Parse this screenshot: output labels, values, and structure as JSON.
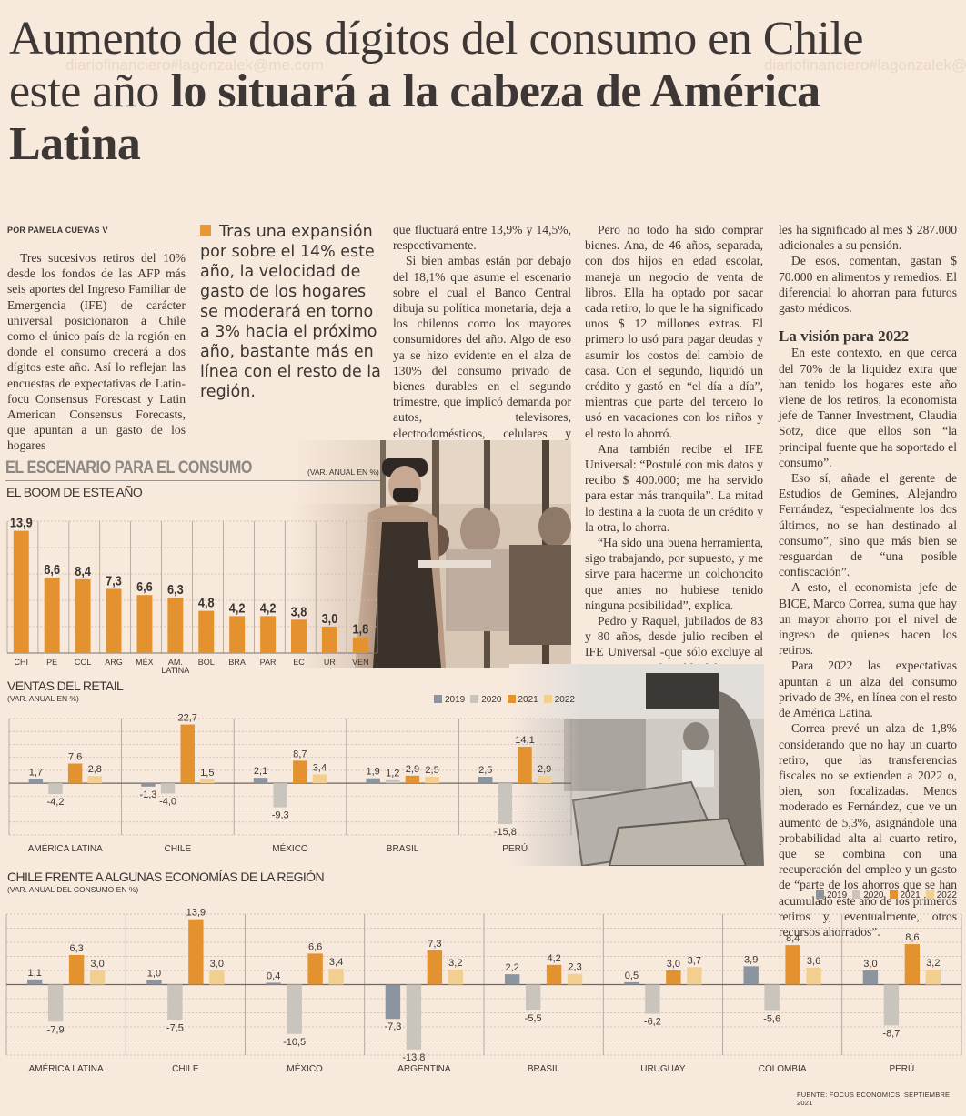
{
  "headline": {
    "light": "Aumento de dos dígitos del consumo en Chile este año ",
    "bold": "lo situará a la cabeza de América Latina"
  },
  "watermark": [
    "diariofinanciero#lagonzalek@me.com",
    "diariofinanciero#lagonzalek@me.com"
  ],
  "byline": "POR PAMELA CUEVAS V",
  "pull_quote": "Tras una expansión por sobre el 14% este año, la velocidad de gasto de los hogares se moderará en torno a 3% hacia el próximo año, bastante más en línea con el resto de la región.",
  "columns": {
    "col1": [
      "Tres sucesivos retiros del 10% desde los fondos de las AFP más seis aportes del Ingreso Familiar de Emergencia (IFE) de carácter universal posicionaron a Chile como el único país de la región en donde el consumo crecerá a dos dígitos este año. Así lo reflejan las encuestas de expectativas de Latin-focu Consensus Forescast y Latin American Consensus Forecasts, que apuntan a un gasto de los hogares"
    ],
    "col2": [
      "que fluctuará entre 13,9% y 14,5%, respectivamente.",
      "Si bien ambas están por debajo del 18,1% que asume el escenario sobre el cual el Banco Central dibuja su política monetaria, deja a los chilenos como los mayores consumidores del año. Algo de eso ya se hizo evidente en el alza de 130% del consumo privado de bienes durables en el segundo trimestre, que implicó demanda por autos, televisores, electrodomésticos, celulares y computadores"
    ],
    "col3": [
      "Pero no todo ha sido comprar bienes. Ana, de 46 años, separada, con dos hijos en edad escolar, maneja un negocio de venta de libros. Ella ha optado por sacar cada retiro, lo que le ha significado unos $ 12 millones extras. El primero lo usó para pagar deudas y asumir los costos del cambio de casa. Con el segundo, liquidó un crédito y gastó en “el día a día”, mientras que parte del tercero lo usó en vacaciones con los niños y el resto lo ahorró.",
      "Ana también recibe el IFE Universal: “Postulé con mis datos y recibo $ 400.000; me ha servido para estar más tranquila”. La mitad lo destina a la cuota de un crédito y la otra, lo ahorra.",
      "“Ha sido una buena herramienta, sigo trabajando, por supuesto, y me sirve para hacerme un colchoncito que antes no hubiese tenido ninguna posibilidad”, explica.",
      "Pedro y Raquel, jubilados de 83 y 80 años, desde julio reciben el IFE Universal -que sólo excluye al 10% menos vulnerable del Registro Social de Hogares (RSH)-, lo que"
    ],
    "col4a": [
      "les ha significado al mes $ 287.000 adicionales a su pensión.",
      "De esos, comentan, gastan $ 70.000 en alimentos y remedios. El diferencial lo ahorran para futuros gasto médicos."
    ],
    "col4_subhead": "La visión para 2022",
    "col4b": [
      "En este contexto, en que cerca del 70% de la liquidez extra que han tenido los hogares este año viene de los retiros, la economista jefe de Tanner Investment, Claudia Sotz, dice que ellos son “la principal fuente que ha soportado el consumo”.",
      "Eso sí, añade el gerente de Estudios de Gemines, Alejandro Fernández, “especialmente los dos últimos, no se han destinado al consumo”, sino que más bien se resguardan de “una posible confiscación”.",
      "A esto, el economista jefe de BICE, Marco Correa, suma que hay un mayor ahorro por el nivel de ingreso de quienes hacen los retiros.",
      "Para 2022 las expectativas apuntan a un alza del consumo privado de 3%, en línea con el resto de América Latina.",
      "Correa prevé un alza de 1,8% considerando que no hay un cuarto retiro, que las transferencias fiscales no se extienden a 2022 o, bien, son focalizadas. Menos moderado es Fernández, que ve un aumento de 5,3%, asignándole una probabilidad alta al cuarto retiro, que se combina con una recuperación del empleo y un gasto de “parte de los ahorros que se han acumulado este año de los primeros retiros y, eventualmente, otros recursos ahorrados”."
    ]
  },
  "infographic": {
    "title": "EL ESCENARIO PARA EL CONSUMO",
    "unit_note": "(VAR. ANUAL EN %)",
    "source": "FUENTE: FOCUS ECONOMICS, SEPTIEMBRE 2021",
    "colors": {
      "2019": "#8a95a0",
      "2020": "#c9c5bc",
      "2021": "#e3922f",
      "2022": "#f2cf8f",
      "boom": "#e3922f"
    }
  },
  "chart_data": [
    {
      "type": "bar",
      "title": "EL BOOM DE ESTE AÑO",
      "ylabel": "(VAR. ANUAL EN %)",
      "categories": [
        "CHI",
        "PE",
        "COL",
        "ARG",
        "MÉX",
        "AM. LATINA",
        "BOL",
        "BRA",
        "PAR",
        "EC",
        "UR",
        "VEN"
      ],
      "values": [
        13.9,
        8.6,
        8.4,
        7.3,
        6.6,
        6.3,
        4.8,
        4.2,
        4.2,
        3.8,
        3.0,
        1.8
      ],
      "labels": [
        "13,9",
        "8,6",
        "8,4",
        "7,3",
        "6,6",
        "6,3",
        "4,8",
        "4,2",
        "4,2",
        "3,8",
        "3,0",
        "1,8"
      ],
      "ylim": [
        0,
        15
      ],
      "grid": true
    },
    {
      "type": "bar",
      "title": "VENTAS DEL RETAIL",
      "subtitle": "(VAR. ANUAL EN %)",
      "categories": [
        "AMÉRICA LATINA",
        "CHILE",
        "MÉXICO",
        "BRASIL",
        "PERÚ"
      ],
      "series": [
        {
          "name": "2019",
          "values": [
            1.7,
            -1.3,
            2.1,
            1.9,
            2.5
          ],
          "labels": [
            "1,7",
            "-1,3",
            "2,1",
            "1,9",
            "2,5"
          ]
        },
        {
          "name": "2020",
          "values": [
            -4.2,
            -4.0,
            -9.3,
            1.2,
            -15.8
          ],
          "labels": [
            "-4,2",
            "-4,0",
            "-9,3",
            "1,2",
            "-15,8"
          ]
        },
        {
          "name": "2021",
          "values": [
            7.6,
            22.7,
            8.7,
            2.9,
            14.1
          ],
          "labels": [
            "7,6",
            "22,7",
            "8,7",
            "2,9",
            "14,1"
          ]
        },
        {
          "name": "2022",
          "values": [
            2.8,
            1.5,
            3.4,
            2.5,
            2.9
          ],
          "labels": [
            "2,8",
            "1,5",
            "3,4",
            "2,5",
            "2,9"
          ]
        }
      ],
      "ylim": [
        -20,
        25
      ],
      "legend": "top-right",
      "grid": true
    },
    {
      "type": "bar",
      "title": "CHILE FRENTE A ALGUNAS ECONOMÍAS DE LA REGIÓN",
      "subtitle": "(VAR. ANUAL DEL CONSUMO EN %)",
      "categories": [
        "AMÉRICA LATINA",
        "CHILE",
        "MÉXICO",
        "ARGENTINA",
        "BRASIL",
        "URUGUAY",
        "COLOMBIA",
        "PERÚ"
      ],
      "series": [
        {
          "name": "2019",
          "values": [
            1.1,
            1.0,
            0.4,
            -7.3,
            2.2,
            0.5,
            3.9,
            3.0
          ],
          "labels": [
            "1,1",
            "1,0",
            "0,4",
            "-7,3",
            "2,2",
            "0,5",
            "3,9",
            "3,0"
          ]
        },
        {
          "name": "2020",
          "values": [
            -7.9,
            -7.5,
            -10.5,
            -13.8,
            -5.5,
            -6.2,
            -5.6,
            -8.7
          ],
          "labels": [
            "-7,9",
            "-7,5",
            "-10,5",
            "-13,8",
            "-5,5",
            "-6,2",
            "-5,6",
            "-8,7"
          ]
        },
        {
          "name": "2021",
          "values": [
            6.3,
            13.9,
            6.6,
            7.3,
            4.2,
            3.0,
            8.4,
            8.6
          ],
          "labels": [
            "6,3",
            "13,9",
            "6,6",
            "7,3",
            "4,2",
            "3,0",
            "8,4",
            "8,6"
          ]
        },
        {
          "name": "2022",
          "values": [
            3.0,
            3.0,
            3.4,
            3.2,
            2.3,
            3.7,
            3.6,
            3.2
          ],
          "labels": [
            "3,0",
            "3,0",
            "3,4",
            "3,2",
            "2,3",
            "3,7",
            "3,6",
            "3,2"
          ]
        }
      ],
      "ylim": [
        -15,
        15
      ],
      "legend": "top-right",
      "grid": true
    }
  ]
}
